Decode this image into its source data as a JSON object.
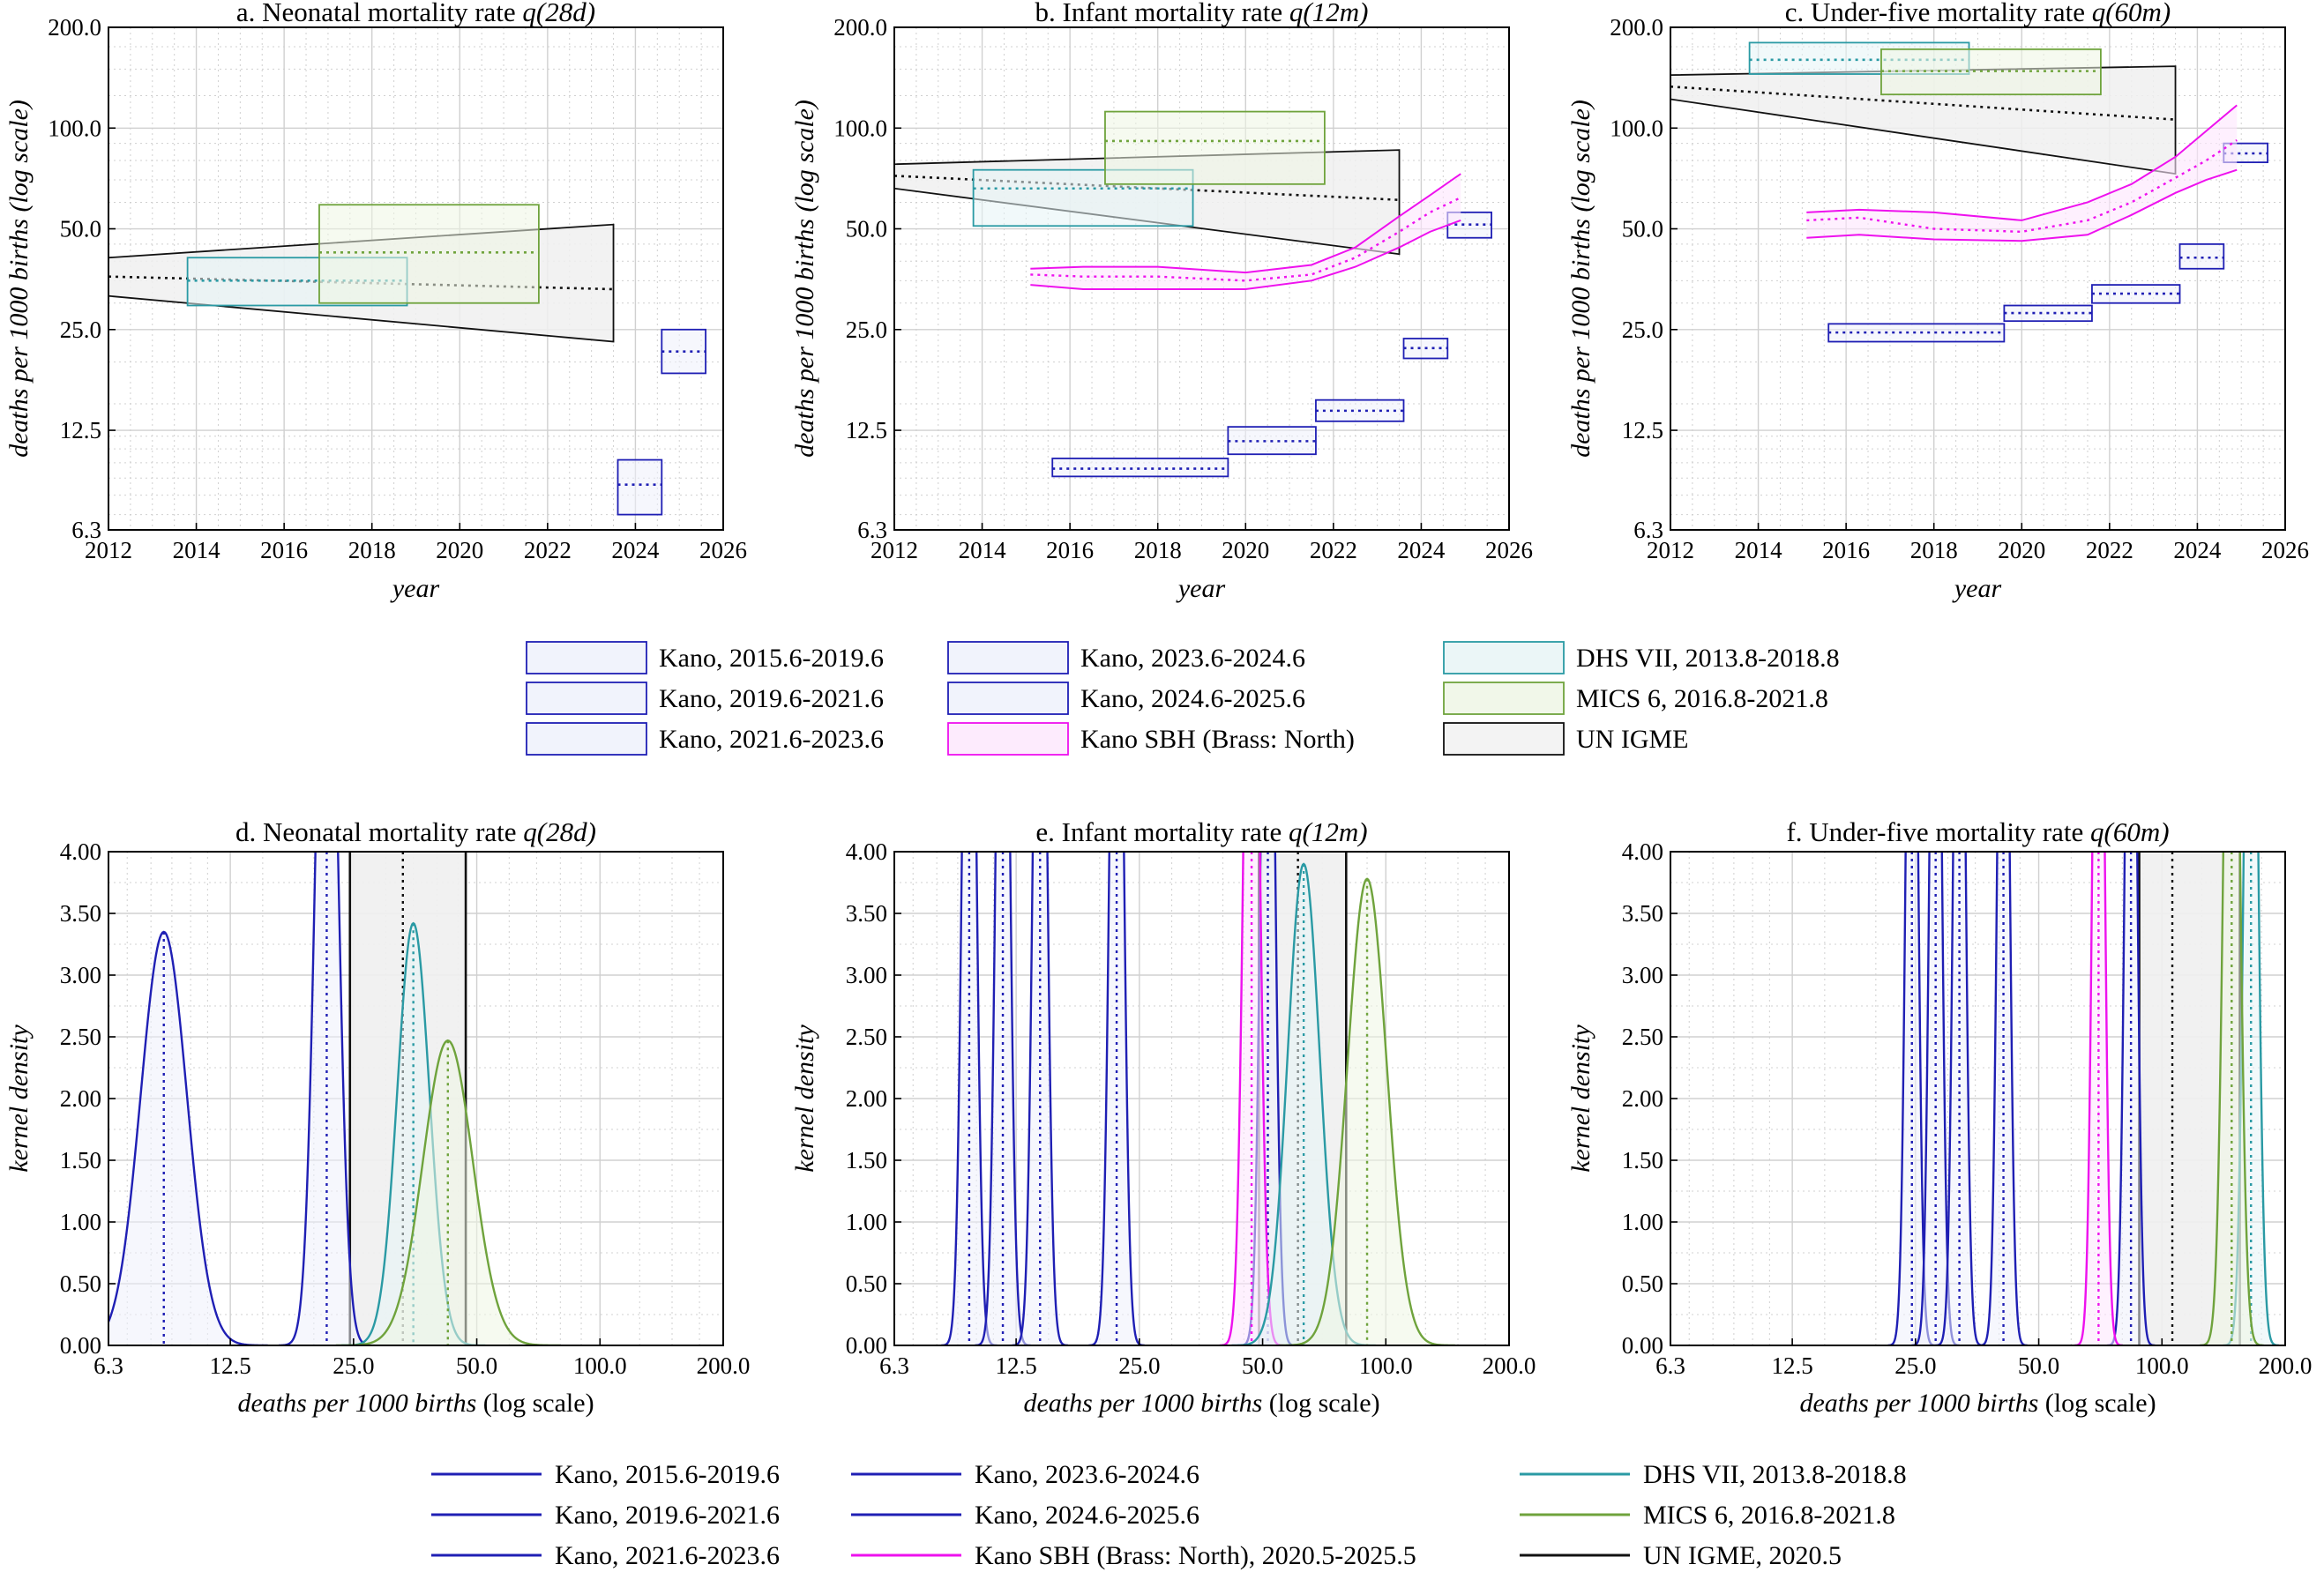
{
  "colors": {
    "kano": "#1f1fb4",
    "kano_fill": "#eef0fb",
    "kano_sbh": "#ee11ee",
    "dhs": "#2a9aa4",
    "dhs_fill": "#e6f4f5",
    "mics": "#6fa33c",
    "mics_fill": "#eef5e3",
    "igme": "#111111",
    "igme_fill": "#f0f0f0",
    "grid": "#d0d0d0"
  },
  "chart_data": [
    {
      "id": "a",
      "type": "area",
      "title_prefix": "a. Neonatal mortality rate ",
      "title_math": "q(28d)",
      "xlabel": "year",
      "ylabel": "deaths per 1000 births (log scale)",
      "xlim": [
        2012,
        2026
      ],
      "ylim": [
        6.3,
        200
      ],
      "yscale": "log",
      "xticks": [
        "2012",
        "2014",
        "2016",
        "2018",
        "2020",
        "2022",
        "2024",
        "2026"
      ],
      "yticks": [
        "6.3",
        "12.5",
        "25.0",
        "50.0",
        "100.0",
        "200.0"
      ],
      "grid": true,
      "igme": {
        "x": [
          2012,
          2023.5
        ],
        "lower": [
          31.5,
          23.0
        ],
        "mid": [
          36.0,
          33.0
        ],
        "upper": [
          41.0,
          51.5
        ]
      },
      "boxes": [
        {
          "series": "DHS VII, 2013.8-2018.8",
          "x": [
            2013.8,
            2018.8
          ],
          "low": 29.5,
          "mid": 35.0,
          "high": 41.0
        },
        {
          "series": "MICS 6, 2016.8-2021.8",
          "x": [
            2016.8,
            2021.8
          ],
          "low": 30.0,
          "mid": 42.5,
          "high": 59.0
        },
        {
          "series": "Kano, 2023.6-2024.6",
          "x": [
            2023.6,
            2024.6
          ],
          "low": 7.0,
          "mid": 8.6,
          "high": 10.2
        },
        {
          "series": "Kano, 2024.6-2025.6",
          "x": [
            2024.6,
            2025.6
          ],
          "low": 18.5,
          "mid": 21.5,
          "high": 25.0
        }
      ]
    },
    {
      "id": "b",
      "type": "area",
      "title_prefix": "b. Infant mortality rate ",
      "title_math": "q(12m)",
      "xlabel": "year",
      "ylabel": "deaths per 1000 births (log scale)",
      "xlim": [
        2012,
        2026
      ],
      "ylim": [
        6.3,
        200
      ],
      "yscale": "log",
      "xticks": [
        "2012",
        "2014",
        "2016",
        "2018",
        "2020",
        "2022",
        "2024",
        "2026"
      ],
      "yticks": [
        "6.3",
        "12.5",
        "25.0",
        "50.0",
        "100.0",
        "200.0"
      ],
      "grid": true,
      "igme": {
        "x": [
          2012,
          2023.5
        ],
        "lower": [
          66.0,
          42.0
        ],
        "mid": [
          72.0,
          61.0
        ],
        "upper": [
          78.0,
          86.0
        ]
      },
      "sbh": {
        "series": "Kano SBH (Brass: North), 2020.5-2025.5",
        "x": [
          2015.1,
          2016.3,
          2018,
          2020,
          2021.5,
          2022.5,
          2023.5,
          2024.2,
          2024.9
        ],
        "lower": [
          34.0,
          33.0,
          33.0,
          33.0,
          35.0,
          38.5,
          44.0,
          49.0,
          53.0
        ],
        "mid": [
          36.5,
          36.0,
          36.0,
          35.0,
          36.5,
          41.0,
          49.0,
          56.0,
          62.0
        ],
        "upper": [
          38.0,
          38.5,
          38.5,
          37.0,
          39.0,
          44.0,
          54.5,
          63.0,
          73.0
        ]
      },
      "boxes": [
        {
          "series": "DHS VII, 2013.8-2018.8",
          "x": [
            2013.8,
            2018.8
          ],
          "low": 51.0,
          "mid": 66.0,
          "high": 75.0
        },
        {
          "series": "MICS 6, 2016.8-2021.8",
          "x": [
            2016.8,
            2021.8
          ],
          "low": 68.0,
          "mid": 91.5,
          "high": 112.0
        },
        {
          "series": "Kano, 2015.6-2019.6",
          "x": [
            2015.6,
            2019.6
          ],
          "low": 9.1,
          "mid": 9.6,
          "high": 10.3
        },
        {
          "series": "Kano, 2019.6-2021.6",
          "x": [
            2019.6,
            2021.6
          ],
          "low": 10.6,
          "mid": 11.6,
          "high": 12.8
        },
        {
          "series": "Kano, 2021.6-2023.6",
          "x": [
            2021.6,
            2023.6
          ],
          "low": 13.3,
          "mid": 14.3,
          "high": 15.4
        },
        {
          "series": "Kano, 2023.6-2024.6",
          "x": [
            2023.6,
            2024.6
          ],
          "low": 20.5,
          "mid": 22.0,
          "high": 23.5
        },
        {
          "series": "Kano, 2024.6-2025.6",
          "x": [
            2024.6,
            2025.6
          ],
          "low": 47.0,
          "mid": 51.5,
          "high": 56.0
        }
      ]
    },
    {
      "id": "c",
      "type": "area",
      "title_prefix": "c. Under-five mortality rate ",
      "title_math": "q(60m)",
      "xlabel": "year",
      "ylabel": "deaths per 1000 births (log scale)",
      "xlim": [
        2012,
        2026
      ],
      "ylim": [
        6.3,
        200
      ],
      "yscale": "log",
      "xticks": [
        "2012",
        "2014",
        "2016",
        "2018",
        "2020",
        "2022",
        "2024",
        "2026"
      ],
      "yticks": [
        "6.3",
        "12.5",
        "25.0",
        "50.0",
        "100.0",
        "200.0"
      ],
      "grid": true,
      "igme": {
        "x": [
          2012,
          2023.5
        ],
        "lower": [
          122.0,
          73.0
        ],
        "mid": [
          133.0,
          106.0
        ],
        "upper": [
          144.0,
          153.0
        ]
      },
      "sbh": {
        "series": "Kano SBH (Brass: North), 2020.5-2025.5",
        "x": [
          2015.1,
          2016.3,
          2018,
          2020,
          2021.5,
          2022.5,
          2023.5,
          2024.2,
          2024.9
        ],
        "lower": [
          47.0,
          48.0,
          46.5,
          46.0,
          48.0,
          55.0,
          64.0,
          70.0,
          75.0
        ],
        "mid": [
          53.0,
          54.0,
          50.0,
          49.0,
          53.0,
          60.0,
          71.0,
          80.0,
          92.0
        ],
        "upper": [
          56.0,
          57.0,
          56.0,
          53.0,
          60.0,
          68.0,
          82.0,
          98.0,
          117.0
        ]
      },
      "boxes": [
        {
          "series": "DHS VII, 2013.8-2018.8",
          "x": [
            2013.8,
            2018.8
          ],
          "low": 145.0,
          "mid": 160.0,
          "high": 180.0
        },
        {
          "series": "MICS 6, 2016.8-2021.8",
          "x": [
            2016.8,
            2021.8
          ],
          "low": 126.0,
          "mid": 148.0,
          "high": 172.0
        },
        {
          "series": "Kano, 2015.6-2019.6",
          "x": [
            2015.6,
            2019.6
          ],
          "low": 23.0,
          "mid": 24.5,
          "high": 26.0
        },
        {
          "series": "Kano, 2019.6-2021.6",
          "x": [
            2019.6,
            2021.6
          ],
          "low": 26.5,
          "mid": 28.0,
          "high": 29.5
        },
        {
          "series": "Kano, 2021.6-2023.6",
          "x": [
            2021.6,
            2023.6
          ],
          "low": 30.0,
          "mid": 32.0,
          "high": 34.0
        },
        {
          "series": "Kano, 2023.6-2024.6",
          "x": [
            2023.6,
            2024.6
          ],
          "low": 38.0,
          "mid": 41.0,
          "high": 45.0
        },
        {
          "series": "Kano, 2024.6-2025.6",
          "x": [
            2024.6,
            2025.6
          ],
          "low": 79.0,
          "mid": 84.0,
          "high": 90.0
        }
      ]
    },
    {
      "id": "d",
      "type": "line",
      "title_prefix": "d. Neonatal mortality rate ",
      "title_math": "q(28d)",
      "xlabel_main": "deaths per 1000 births",
      "xlabel_suffix": " (log scale)",
      "ylabel": "kernel density",
      "xlim": [
        6.3,
        200
      ],
      "xscale": "log",
      "ylim": [
        0,
        4
      ],
      "xticks": [
        "6.3",
        "12.5",
        "25.0",
        "50.0",
        "100.0",
        "200.0"
      ],
      "yticks": [
        "0.00",
        "0.50",
        "1.00",
        "1.50",
        "2.00",
        "2.50",
        "3.00",
        "3.50",
        "4.00"
      ],
      "grid": true,
      "igme_band": [
        24.5,
        47.0
      ],
      "igme_mid": 33.0,
      "densities": [
        {
          "series": "Kano, 2023.6-2024.6",
          "center": 8.6,
          "sd": 0.13,
          "peak": 3.35
        },
        {
          "series": "Kano, 2024.6-2025.6",
          "center": 21.5,
          "sd": 0.06,
          "peak": 7.0
        },
        {
          "series": "DHS VII, 2013.8-2018.8",
          "center": 35.0,
          "sd": 0.09,
          "peak": 3.42
        },
        {
          "series": "MICS 6, 2016.8-2021.8",
          "center": 42.5,
          "sd": 0.14,
          "peak": 2.47
        }
      ]
    },
    {
      "id": "e",
      "type": "line",
      "title_prefix": "e. Infant mortality rate ",
      "title_math": "q(12m)",
      "xlabel_main": "deaths per 1000 births",
      "xlabel_suffix": " (log scale)",
      "ylabel": "kernel density",
      "xlim": [
        6.3,
        200
      ],
      "xscale": "log",
      "ylim": [
        0,
        4
      ],
      "xticks": [
        "6.3",
        "12.5",
        "25.0",
        "50.0",
        "100.0",
        "200.0"
      ],
      "yticks": [
        "0.00",
        "0.50",
        "1.00",
        "1.50",
        "2.00",
        "2.50",
        "3.00",
        "3.50",
        "4.00"
      ],
      "grid": true,
      "igme_band": [
        49.0,
        80.0
      ],
      "igme_mid": 61.0,
      "densities": [
        {
          "series": "Kano, 2015.6-2019.6",
          "center": 9.6,
          "sd": 0.035,
          "peak": 8.0
        },
        {
          "series": "Kano, 2019.6-2021.6",
          "center": 11.6,
          "sd": 0.035,
          "peak": 8.0
        },
        {
          "series": "Kano, 2021.6-2023.6",
          "center": 14.3,
          "sd": 0.035,
          "peak": 8.0
        },
        {
          "series": "Kano, 2023.6-2024.6",
          "center": 22.0,
          "sd": 0.035,
          "peak": 8.0
        },
        {
          "series": "Kano, 2024.6-2025.6",
          "center": 51.5,
          "sd": 0.035,
          "peak": 8.0
        },
        {
          "series": "Kano SBH (Brass: North), 2020.5-2025.5",
          "center": 47.0,
          "sd": 0.04,
          "peak": 8.0
        },
        {
          "series": "DHS VII, 2013.8-2018.8",
          "center": 63.0,
          "sd": 0.09,
          "peak": 3.9
        },
        {
          "series": "MICS 6, 2016.8-2021.8",
          "center": 90.0,
          "sd": 0.11,
          "peak": 3.78
        }
      ]
    },
    {
      "id": "f",
      "type": "line",
      "title_prefix": "f. Under-five mortality rate ",
      "title_math": "q(60m)",
      "xlabel_main": "deaths per 1000 births",
      "xlabel_suffix": " (log scale)",
      "ylabel": "kernel density",
      "xlim": [
        6.3,
        200
      ],
      "xscale": "log",
      "ylim": [
        0,
        4
      ],
      "xticks": [
        "6.3",
        "12.5",
        "25.0",
        "50.0",
        "100.0",
        "200.0"
      ],
      "yticks": [
        "0.00",
        "0.50",
        "1.00",
        "1.50",
        "2.00",
        "2.50",
        "3.00",
        "3.50",
        "4.00"
      ],
      "grid": true,
      "igme_band": [
        88.0,
        155.0
      ],
      "igme_mid": 106.0,
      "densities": [
        {
          "series": "Kano, 2015.6-2019.6",
          "center": 24.5,
          "sd": 0.03,
          "peak": 8.0
        },
        {
          "series": "Kano, 2019.6-2021.6",
          "center": 28.0,
          "sd": 0.03,
          "peak": 8.0
        },
        {
          "series": "Kano, 2021.6-2023.6",
          "center": 32.0,
          "sd": 0.03,
          "peak": 8.0
        },
        {
          "series": "Kano, 2023.6-2024.6",
          "center": 41.0,
          "sd": 0.03,
          "peak": 8.0
        },
        {
          "series": "Kano, 2024.6-2025.6",
          "center": 84.0,
          "sd": 0.03,
          "peak": 8.0
        },
        {
          "series": "Kano SBH (Brass: North), 2020.5-2025.5",
          "center": 70.0,
          "sd": 0.03,
          "peak": 8.0
        },
        {
          "series": "DHS VII, 2013.8-2018.8",
          "center": 165.0,
          "sd": 0.035,
          "peak": 8.0
        },
        {
          "series": "MICS 6, 2016.8-2021.8",
          "center": 148.0,
          "sd": 0.04,
          "peak": 8.0
        }
      ]
    }
  ],
  "legend_top": [
    {
      "label": "Kano, 2015.6-2019.6",
      "kind": "kano"
    },
    {
      "label": "Kano, 2023.6-2024.6",
      "kind": "kano"
    },
    {
      "label": "DHS VII, 2013.8-2018.8",
      "kind": "dhs"
    },
    {
      "label": "Kano, 2019.6-2021.6",
      "kind": "kano"
    },
    {
      "label": "Kano, 2024.6-2025.6",
      "kind": "kano"
    },
    {
      "label": "MICS 6, 2016.8-2021.8",
      "kind": "mics"
    },
    {
      "label": "Kano, 2021.6-2023.6",
      "kind": "kano"
    },
    {
      "label": "Kano SBH (Brass: North)",
      "kind": "sbh"
    },
    {
      "label": "UN IGME",
      "kind": "igme"
    }
  ],
  "legend_bottom": [
    {
      "label": "Kano, 2015.6-2019.6",
      "kind": "kano"
    },
    {
      "label": "Kano, 2023.6-2024.6",
      "kind": "kano"
    },
    {
      "label": "DHS VII, 2013.8-2018.8",
      "kind": "dhs"
    },
    {
      "label": "Kano, 2019.6-2021.6",
      "kind": "kano"
    },
    {
      "label": "Kano, 2024.6-2025.6",
      "kind": "kano"
    },
    {
      "label": "MICS 6, 2016.8-2021.8",
      "kind": "mics"
    },
    {
      "label": "Kano, 2021.6-2023.6",
      "kind": "kano"
    },
    {
      "label": "Kano SBH (Brass: North), 2020.5-2025.5",
      "kind": "sbh"
    },
    {
      "label": "UN IGME, 2020.5",
      "kind": "igme"
    }
  ]
}
